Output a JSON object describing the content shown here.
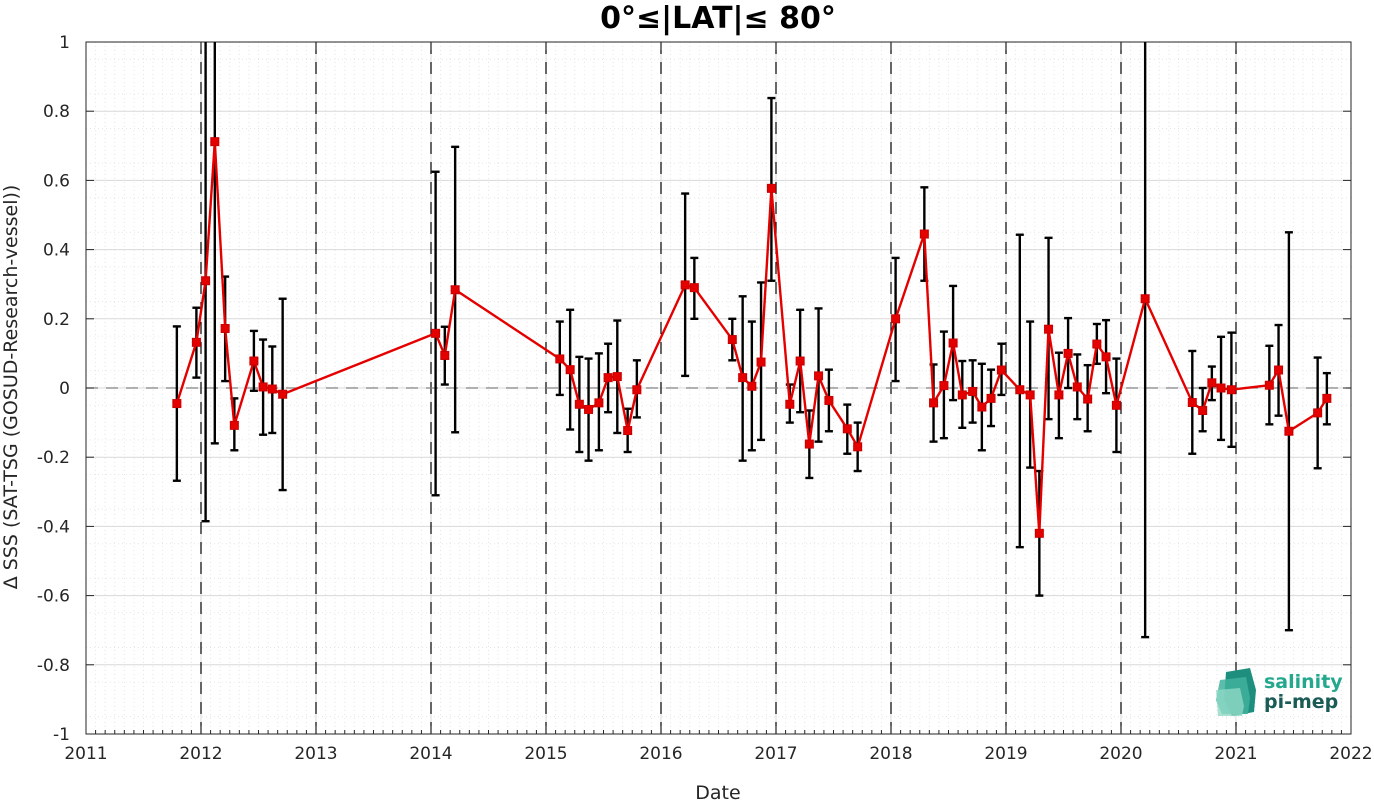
{
  "chart_data": {
    "type": "line",
    "title": "0°≤|LAT|≤ 80°",
    "xlabel": "Date",
    "ylabel": "Δ SSS (SAT-TSG (GOSUD-Research-vessel))",
    "xlim": [
      2011,
      2022
    ],
    "ylim": [
      -1,
      1
    ],
    "x_ticks": [
      "2011",
      "2012",
      "2013",
      "2014",
      "2015",
      "2016",
      "2017",
      "2018",
      "2019",
      "2020",
      "2021",
      "2022"
    ],
    "y_ticks": [
      "-1",
      "-0.8",
      "-0.6",
      "-0.4",
      "-0.2",
      "0",
      "0.2",
      "0.4",
      "0.6",
      "0.8",
      "1"
    ],
    "grid": true,
    "reference_line": 0,
    "year_boundaries": [
      2012,
      2013,
      2014,
      2015,
      2016,
      2017,
      2018,
      2019,
      2020,
      2021
    ],
    "colors": {
      "series": "#e50000",
      "errorbar": "#000000",
      "grid": "#d9d9d9",
      "reference": "#808080"
    },
    "series": [
      {
        "x": [
          2011.79,
          2011.96,
          2012.04,
          2012.12,
          2012.21,
          2012.29,
          2012.46,
          2012.54,
          2012.62,
          2012.71,
          2014.04,
          2014.12,
          2014.21,
          2015.12,
          2015.21,
          2015.29,
          2015.37,
          2015.46,
          2015.54,
          2015.62,
          2015.71,
          2015.79,
          2016.21,
          2016.29,
          2016.62,
          2016.71,
          2016.79,
          2016.87,
          2016.96,
          2017.12,
          2017.21,
          2017.29,
          2017.37,
          2017.46,
          2017.62,
          2017.71,
          2018.04,
          2018.29,
          2018.37,
          2018.46,
          2018.54,
          2018.62,
          2018.71,
          2018.79,
          2018.87,
          2018.96,
          2019.12,
          2019.21,
          2019.29,
          2019.37,
          2019.46,
          2019.54,
          2019.62,
          2019.71,
          2019.79,
          2019.87,
          2019.96,
          2020.21,
          2020.62,
          2020.71,
          2020.79,
          2020.87,
          2020.96,
          2021.29,
          2021.37,
          2021.46,
          2021.71,
          2021.79
        ],
        "y": [
          -0.045,
          0.132,
          0.31,
          0.712,
          0.172,
          -0.108,
          0.078,
          0.003,
          -0.003,
          -0.018,
          0.158,
          0.094,
          0.284,
          0.084,
          0.053,
          -0.047,
          -0.062,
          -0.043,
          0.03,
          0.033,
          -0.123,
          -0.005,
          0.298,
          0.29,
          0.14,
          0.03,
          0.005,
          0.075,
          0.577,
          -0.047,
          0.078,
          -0.162,
          0.035,
          -0.036,
          -0.118,
          -0.17,
          0.2,
          0.445,
          -0.043,
          0.007,
          0.13,
          -0.02,
          -0.01,
          -0.055,
          -0.03,
          0.052,
          -0.005,
          -0.02,
          -0.42,
          0.17,
          -0.02,
          0.1,
          0.003,
          -0.032,
          0.127,
          0.09,
          -0.05,
          0.258,
          -0.042,
          -0.065,
          0.015,
          0.0,
          -0.005,
          0.008,
          0.052,
          -0.125,
          -0.072,
          -0.03
        ],
        "err_low": [
          -0.268,
          0.03,
          -0.385,
          -0.16,
          0.02,
          -0.18,
          -0.008,
          -0.135,
          -0.13,
          -0.295,
          -0.31,
          0.01,
          -0.128,
          -0.02,
          -0.12,
          -0.185,
          -0.21,
          -0.18,
          -0.07,
          -0.13,
          -0.185,
          -0.085,
          0.035,
          0.2,
          0.08,
          -0.21,
          -0.18,
          -0.15,
          0.31,
          -0.1,
          -0.07,
          -0.26,
          -0.155,
          -0.125,
          -0.19,
          -0.24,
          0.02,
          0.31,
          -0.155,
          -0.145,
          -0.035,
          -0.115,
          -0.1,
          -0.18,
          -0.11,
          -0.02,
          -0.46,
          -0.23,
          -0.6,
          -0.09,
          -0.145,
          0.0,
          -0.09,
          -0.125,
          0.07,
          -0.015,
          -0.185,
          -0.72,
          -0.19,
          -0.125,
          -0.035,
          -0.15,
          -0.17,
          -0.105,
          -0.08,
          -0.7,
          -0.232,
          -0.105
        ],
        "err_high": [
          0.178,
          0.232,
          1.0,
          1.0,
          0.322,
          -0.03,
          0.165,
          0.14,
          0.12,
          0.258,
          0.625,
          0.177,
          0.697,
          0.192,
          0.226,
          0.09,
          0.085,
          0.1,
          0.128,
          0.195,
          -0.06,
          0.08,
          0.562,
          0.376,
          0.2,
          0.265,
          0.192,
          0.305,
          0.838,
          0.01,
          0.226,
          -0.065,
          0.23,
          0.053,
          -0.048,
          -0.1,
          0.376,
          0.58,
          0.068,
          0.163,
          0.295,
          0.078,
          0.08,
          0.07,
          0.053,
          0.128,
          0.443,
          0.192,
          -0.24,
          0.434,
          0.102,
          0.202,
          0.097,
          0.066,
          0.185,
          0.196,
          0.085,
          1.0,
          0.107,
          0.0,
          0.062,
          0.148,
          0.16,
          0.122,
          0.182,
          0.45,
          0.088,
          0.043
        ]
      }
    ]
  },
  "logo": {
    "line1": "salinity",
    "line2": "pi-mep"
  }
}
